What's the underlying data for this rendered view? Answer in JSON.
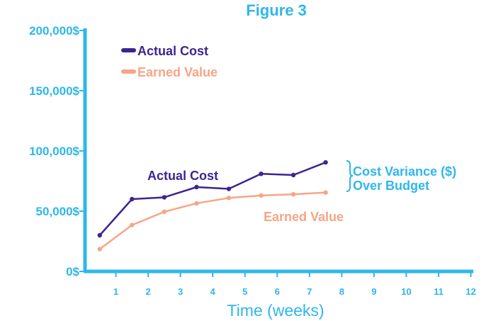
{
  "chart_data": {
    "type": "line",
    "title": "Figure 3",
    "xlabel": "Time (weeks)",
    "ylabel": "",
    "x_ticks": [
      "1",
      "2",
      "3",
      "4",
      "5",
      "6",
      "7",
      "8",
      "9",
      "10",
      "11",
      "12"
    ],
    "y_ticks": [
      "0$",
      "50,000$",
      "100,000$",
      "150,000$",
      "200,000$"
    ],
    "xlim": [
      0,
      12
    ],
    "ylim": [
      0,
      200000
    ],
    "grid": false,
    "legend_position": "top-left",
    "x": [
      0.5,
      1.5,
      2.5,
      3.5,
      4.5,
      5.5,
      6.5,
      7.5
    ],
    "series": [
      {
        "name": "Actual Cost",
        "color": "#3d2591",
        "values": [
          30000,
          60000,
          61500,
          70000,
          68500,
          81000,
          80000,
          90500
        ]
      },
      {
        "name": "Earned Value",
        "color": "#f7a587",
        "values": [
          18500,
          38500,
          49500,
          56500,
          61000,
          63000,
          64000,
          65500
        ]
      }
    ],
    "annotations": {
      "actual_cost_label": "Actual Cost",
      "earned_value_label": "Earned Value",
      "variance_line1": "Cost  Variance ($)",
      "variance_line2": "Over Budget"
    }
  },
  "colors": {
    "axis": "#2eb7ec",
    "actual_cost": "#3d2591",
    "earned_value": "#f7a587"
  }
}
